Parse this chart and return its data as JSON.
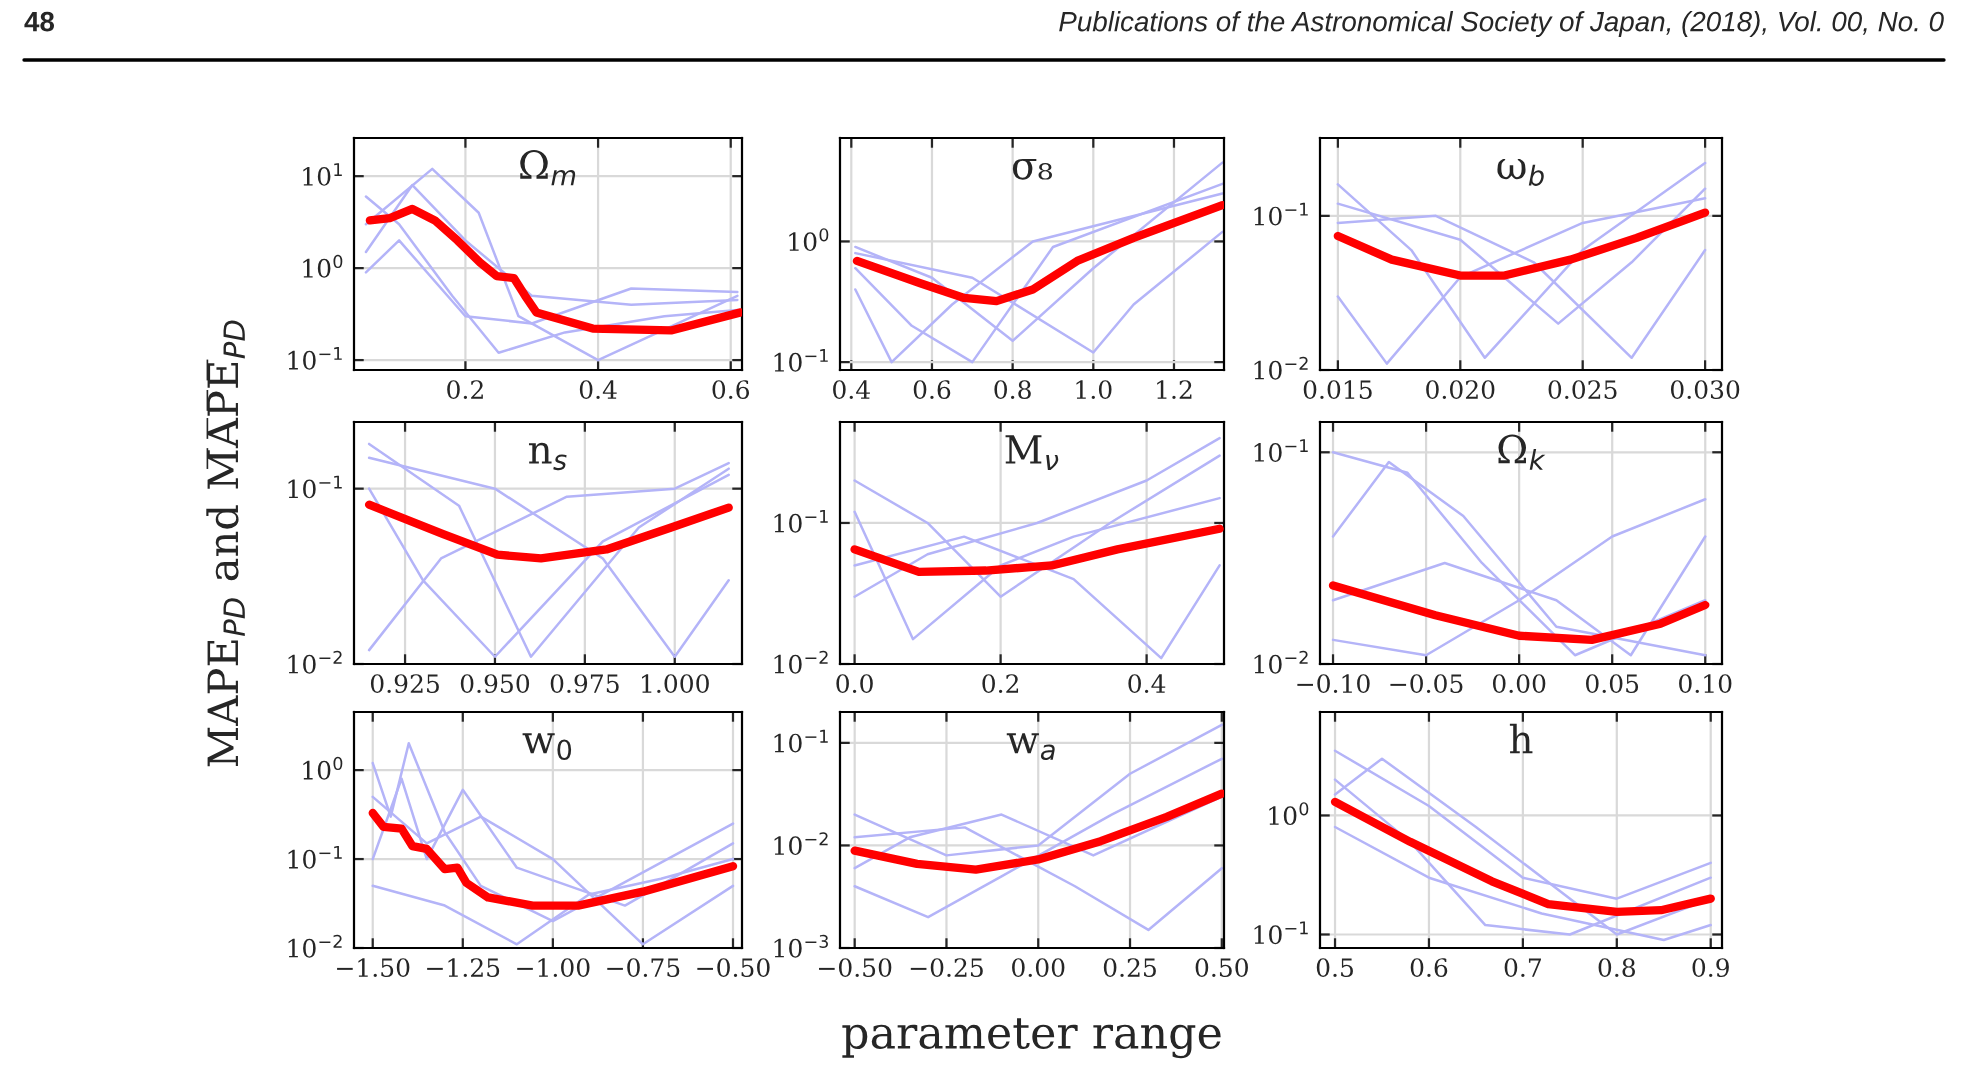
{
  "chart_data": [
    {
      "type": "line",
      "title": "Ω$_{m}$",
      "annotations": [
        "48",
        "Publications of the Astronomical Society of Japan, (2018), Vol. 00, No. 0"
      ],
      "grid": true,
      "log": "y",
      "marker": "none",
      "line_style": "solid",
      "xlim": [
        0.032,
        0.617
      ],
      "xticks": [
        0.2,
        0.4,
        0.6
      ],
      "ylim": [
        0.078,
        26
      ],
      "yticks": [
        {
          "value": 0.1,
          "label": "10$^{−1}$"
        },
        {
          "value": 1,
          "label": "10$^{0}$"
        },
        {
          "value": 10,
          "label": "10$^{1}$"
        }
      ],
      "series": [
        {
          "color": "#b4b4f8",
          "x": [
            0.05,
            0.12,
            0.2,
            0.3,
            0.45,
            0.61
          ],
          "values": [
            1.5,
            8,
            2,
            0.5,
            0.4,
            0.45
          ]
        },
        {
          "color": "#b4b4f8",
          "x": [
            0.05,
            0.1,
            0.18,
            0.25,
            0.35,
            0.5,
            0.61
          ],
          "values": [
            6,
            3,
            0.5,
            0.12,
            0.2,
            0.3,
            0.35
          ]
        },
        {
          "color": "#b4b4f8",
          "x": [
            0.05,
            0.15,
            0.22,
            0.28,
            0.4,
            0.61
          ],
          "values": [
            3,
            12,
            4,
            0.3,
            0.1,
            0.5
          ]
        },
        {
          "color": "#b4b4f8",
          "x": [
            0.05,
            0.1,
            0.2,
            0.3,
            0.45,
            0.61
          ],
          "values": [
            0.9,
            2,
            0.3,
            0.25,
            0.6,
            0.55
          ]
        },
        {
          "color": "#ff0000",
          "x": [
            0.056,
            0.086,
            0.12,
            0.154,
            0.188,
            0.222,
            0.247,
            0.273,
            0.29,
            0.307,
            0.392,
            0.51,
            0.615
          ],
          "values": [
            3.3,
            3.5,
            4.4,
            3.3,
            2.0,
            1.15,
            0.82,
            0.78,
            0.5,
            0.33,
            0.22,
            0.21,
            0.33
          ]
        }
      ]
    },
    {
      "type": "line",
      "title": "σ₈",
      "grid": true,
      "log": "y",
      "marker": "none",
      "line_style": "solid",
      "xlim": [
        0.372,
        1.324
      ],
      "xticks": [
        0.4,
        0.6,
        0.8,
        {
          "value": 1.0,
          "label": "1.0"
        },
        1.2
      ],
      "ylim": [
        0.086,
        7.2
      ],
      "yticks": [
        {
          "value": 0.1,
          "label": "10$^{−1}$"
        },
        {
          "value": 1,
          "label": "10$^{0}$"
        }
      ],
      "series": [
        {
          "color": "#b4b4f8",
          "x": [
            0.41,
            0.6,
            0.8,
            1.0,
            1.32
          ],
          "values": [
            0.9,
            0.5,
            0.15,
            0.6,
            4.5
          ]
        },
        {
          "color": "#b4b4f8",
          "x": [
            0.41,
            0.55,
            0.7,
            0.9,
            1.32
          ],
          "values": [
            0.6,
            0.2,
            0.1,
            0.9,
            3
          ]
        },
        {
          "color": "#b4b4f8",
          "x": [
            0.41,
            0.7,
            1.0,
            1.1,
            1.32
          ],
          "values": [
            0.8,
            0.5,
            0.12,
            0.3,
            1.2
          ]
        },
        {
          "color": "#b4b4f8",
          "x": [
            0.41,
            0.5,
            0.65,
            0.85,
            1.32
          ],
          "values": [
            0.4,
            0.1,
            0.3,
            1.0,
            2.5
          ]
        },
        {
          "color": "#ff0000",
          "x": [
            0.414,
            0.571,
            0.68,
            0.76,
            0.85,
            0.96,
            1.1,
            1.32
          ],
          "values": [
            0.69,
            0.45,
            0.34,
            0.32,
            0.4,
            0.69,
            1.07,
            2.0
          ]
        }
      ]
    },
    {
      "type": "line",
      "title": "ω$_{b}$",
      "grid": true,
      "log": "y",
      "marker": "none",
      "line_style": "solid",
      "xlim": [
        0.01427,
        0.03069
      ],
      "xticks": [
        0.015,
        {
          "value": 0.02,
          "label": "0.020"
        },
        0.025,
        {
          "value": 0.03,
          "label": "0.030"
        }
      ],
      "ylim": [
        0.01,
        0.32
      ],
      "yticks": [
        {
          "value": 0.01,
          "label": "10$^{−2}$"
        },
        {
          "value": 0.1,
          "label": "10$^{−1}$"
        }
      ],
      "series": [
        {
          "color": "#b4b4f8",
          "x": [
            0.015,
            0.018,
            0.021,
            0.025,
            0.03
          ],
          "values": [
            0.16,
            0.06,
            0.012,
            0.06,
            0.22
          ]
        },
        {
          "color": "#b4b4f8",
          "x": [
            0.015,
            0.02,
            0.024,
            0.027,
            0.03
          ],
          "values": [
            0.12,
            0.07,
            0.02,
            0.05,
            0.15
          ]
        },
        {
          "color": "#b4b4f8",
          "x": [
            0.015,
            0.017,
            0.02,
            0.025,
            0.03
          ],
          "values": [
            0.03,
            0.011,
            0.04,
            0.09,
            0.13
          ]
        },
        {
          "color": "#b4b4f8",
          "x": [
            0.015,
            0.019,
            0.023,
            0.027,
            0.03
          ],
          "values": [
            0.09,
            0.1,
            0.05,
            0.012,
            0.06
          ]
        },
        {
          "color": "#ff0000",
          "x": [
            0.015,
            0.0172,
            0.02,
            0.0218,
            0.0245,
            0.0272,
            0.03
          ],
          "values": [
            0.074,
            0.052,
            0.041,
            0.041,
            0.052,
            0.072,
            0.105
          ]
        }
      ]
    },
    {
      "type": "line",
      "title": "n$_{s}$",
      "ylabel": "MAPE$_{PD}$ and M̅A̅P̅E̅$_{PD}$",
      "grid": true,
      "log": "y",
      "marker": "none",
      "line_style": "solid",
      "xlim": [
        0.9108,
        1.0187
      ],
      "xticks": [
        0.925,
        {
          "value": 0.95,
          "label": "0.950"
        },
        0.975,
        {
          "value": 1.0,
          "label": "1.000"
        }
      ],
      "ylim": [
        0.01,
        0.24
      ],
      "yticks": [
        {
          "value": 0.01,
          "label": "10$^{−2}$"
        },
        {
          "value": 0.1,
          "label": "10$^{−1}$"
        }
      ],
      "series": [
        {
          "color": "#b4b4f8",
          "x": [
            0.915,
            0.94,
            0.96,
            0.99,
            1.015
          ],
          "values": [
            0.18,
            0.08,
            0.011,
            0.06,
            0.13
          ]
        },
        {
          "color": "#b4b4f8",
          "x": [
            0.915,
            0.93,
            0.95,
            0.98,
            1.015
          ],
          "values": [
            0.1,
            0.03,
            0.011,
            0.05,
            0.12
          ]
        },
        {
          "color": "#b4b4f8",
          "x": [
            0.915,
            0.95,
            0.98,
            1.0,
            1.015
          ],
          "values": [
            0.15,
            0.1,
            0.04,
            0.011,
            0.03
          ]
        },
        {
          "color": "#b4b4f8",
          "x": [
            0.915,
            0.935,
            0.97,
            1.0,
            1.015
          ],
          "values": [
            0.012,
            0.04,
            0.09,
            0.1,
            0.14
          ]
        },
        {
          "color": "#ff0000",
          "x": [
            0.915,
            0.9356,
            0.9507,
            0.9628,
            0.981,
            0.999,
            1.015
          ],
          "values": [
            0.081,
            0.055,
            0.042,
            0.04,
            0.045,
            0.06,
            0.078
          ]
        }
      ]
    },
    {
      "type": "line",
      "title": "M$_{ν}$",
      "grid": true,
      "log": "y",
      "marker": "none",
      "line_style": "solid",
      "xlim": [
        -0.02,
        0.506
      ],
      "xticks": [
        {
          "value": 0.0,
          "label": "0.0"
        },
        0.2,
        0.4
      ],
      "ylim": [
        0.01,
        0.52
      ],
      "yticks": [
        {
          "value": 0.01,
          "label": "10$^{−2}$"
        },
        {
          "value": 0.1,
          "label": "10$^{−1}$"
        }
      ],
      "series": [
        {
          "color": "#b4b4f8",
          "x": [
            0.0,
            0.1,
            0.2,
            0.35,
            0.5
          ],
          "values": [
            0.2,
            0.1,
            0.03,
            0.1,
            0.3
          ]
        },
        {
          "color": "#b4b4f8",
          "x": [
            0.0,
            0.08,
            0.2,
            0.3,
            0.5
          ],
          "values": [
            0.12,
            0.015,
            0.05,
            0.08,
            0.15
          ]
        },
        {
          "color": "#b4b4f8",
          "x": [
            0.0,
            0.15,
            0.3,
            0.42,
            0.5
          ],
          "values": [
            0.05,
            0.08,
            0.04,
            0.011,
            0.05
          ]
        },
        {
          "color": "#b4b4f8",
          "x": [
            0.0,
            0.1,
            0.25,
            0.4,
            0.5
          ],
          "values": [
            0.03,
            0.06,
            0.1,
            0.2,
            0.4
          ]
        },
        {
          "color": "#ff0000",
          "x": [
            0.0,
            0.088,
            0.18,
            0.27,
            0.36,
            0.5
          ],
          "values": [
            0.065,
            0.045,
            0.046,
            0.05,
            0.065,
            0.091
          ]
        }
      ]
    },
    {
      "type": "line",
      "title": "Ω$_{k}$",
      "grid": true,
      "log": "y",
      "marker": "none",
      "line_style": "solid",
      "xlim": [
        -0.107,
        0.109
      ],
      "xticks": [
        {
          "value": -0.1,
          "label": "−0.10"
        },
        {
          "value": -0.05,
          "label": "−0.05"
        },
        {
          "value": 0.0,
          "label": "0.00"
        },
        0.05,
        {
          "value": 0.1,
          "label": "0.10"
        }
      ],
      "ylim": [
        0.01,
        0.139
      ],
      "yticks": [
        {
          "value": 0.01,
          "label": "10$^{−2}$"
        },
        {
          "value": 0.1,
          "label": "10$^{−1}$"
        }
      ],
      "series": [
        {
          "color": "#b4b4f8",
          "x": [
            -0.1,
            -0.06,
            -0.02,
            0.03,
            0.1
          ],
          "values": [
            0.1,
            0.08,
            0.03,
            0.011,
            0.02
          ]
        },
        {
          "color": "#b4b4f8",
          "x": [
            -0.1,
            -0.05,
            0.0,
            0.05,
            0.1
          ],
          "values": [
            0.013,
            0.011,
            0.02,
            0.04,
            0.06
          ]
        },
        {
          "color": "#b4b4f8",
          "x": [
            -0.1,
            -0.07,
            -0.03,
            0.02,
            0.1
          ],
          "values": [
            0.04,
            0.09,
            0.05,
            0.015,
            0.011
          ]
        },
        {
          "color": "#b4b4f8",
          "x": [
            -0.1,
            -0.04,
            0.02,
            0.06,
            0.1
          ],
          "values": [
            0.02,
            0.03,
            0.02,
            0.011,
            0.04
          ]
        },
        {
          "color": "#ff0000",
          "x": [
            -0.1,
            -0.045,
            0.0,
            0.039,
            0.076,
            0.1
          ],
          "values": [
            0.0235,
            0.017,
            0.0136,
            0.013,
            0.0155,
            0.019
          ]
        }
      ]
    },
    {
      "type": "line",
      "title": "w$_{0}$",
      "grid": true,
      "log": "y",
      "marker": "none",
      "line_style": "solid",
      "xlim": [
        -1.552,
        -0.475
      ],
      "xticks": [
        {
          "value": -1.5,
          "label": "−1.50"
        },
        {
          "value": -1.25,
          "label": "−1.25"
        },
        {
          "value": -1.0,
          "label": "−1.00"
        },
        {
          "value": -0.75,
          "label": "−0.75"
        },
        {
          "value": -0.5,
          "label": "−0.50"
        }
      ],
      "ylim": [
        0.01,
        4.5
      ],
      "yticks": [
        {
          "value": 0.01,
          "label": "10$^{−2}$"
        },
        {
          "value": 0.1,
          "label": "10$^{−1}$"
        },
        {
          "value": 1,
          "label": "10$^{0}$"
        }
      ],
      "series": [
        {
          "color": "#b4b4f8",
          "x": [
            -1.5,
            -1.45,
            -1.4,
            -1.3,
            -1.2,
            -1.0,
            -0.5
          ],
          "values": [
            1.2,
            0.3,
            2.0,
            0.2,
            0.05,
            0.02,
            0.25
          ]
        },
        {
          "color": "#b4b4f8",
          "x": [
            -1.5,
            -1.42,
            -1.35,
            -1.25,
            -1.1,
            -0.8,
            -0.5
          ],
          "values": [
            0.1,
            0.8,
            0.1,
            0.6,
            0.08,
            0.03,
            0.15
          ]
        },
        {
          "color": "#b4b4f8",
          "x": [
            -1.5,
            -1.3,
            -1.1,
            -0.9,
            -0.7,
            -0.5
          ],
          "values": [
            0.05,
            0.03,
            0.011,
            0.04,
            0.06,
            0.1
          ]
        },
        {
          "color": "#b4b4f8",
          "x": [
            -1.5,
            -1.35,
            -1.2,
            -1.0,
            -0.75,
            -0.5
          ],
          "values": [
            0.5,
            0.15,
            0.3,
            0.1,
            0.011,
            0.05
          ]
        },
        {
          "color": "#ff0000",
          "x": [
            -1.5,
            -1.47,
            -1.42,
            -1.39,
            -1.35,
            -1.3,
            -1.265,
            -1.24,
            -1.18,
            -1.056,
            -0.93,
            -0.75,
            -0.5
          ],
          "values": [
            0.33,
            0.23,
            0.22,
            0.14,
            0.13,
            0.077,
            0.08,
            0.054,
            0.037,
            0.03,
            0.03,
            0.043,
            0.083
          ]
        }
      ]
    },
    {
      "type": "line",
      "title": "w$_{a}$",
      "xlabel": "parameter range",
      "grid": true,
      "log": "y",
      "marker": "none",
      "line_style": "solid",
      "xlim": [
        -0.54,
        0.506
      ],
      "xticks": [
        {
          "value": -0.5,
          "label": "−0.50"
        },
        {
          "value": -0.25,
          "label": "−0.25"
        },
        {
          "value": 0.0,
          "label": "0.00"
        },
        0.25,
        {
          "value": 0.5,
          "label": "0.50"
        }
      ],
      "ylim": [
        0.001,
        0.2
      ],
      "yticks": [
        {
          "value": 0.001,
          "label": "10$^{−3}$"
        },
        {
          "value": 0.01,
          "label": "10$^{−2}$"
        },
        {
          "value": 0.1,
          "label": "10$^{−1}$"
        }
      ],
      "series": [
        {
          "color": "#b4b4f8",
          "x": [
            -0.5,
            -0.25,
            0.0,
            0.25,
            0.5
          ],
          "values": [
            0.02,
            0.008,
            0.01,
            0.05,
            0.15
          ]
        },
        {
          "color": "#b4b4f8",
          "x": [
            -0.5,
            -0.3,
            -0.1,
            0.2,
            0.5
          ],
          "values": [
            0.004,
            0.002,
            0.005,
            0.02,
            0.07
          ]
        },
        {
          "color": "#b4b4f8",
          "x": [
            -0.5,
            -0.2,
            0.1,
            0.3,
            0.5
          ],
          "values": [
            0.012,
            0.015,
            0.004,
            0.0015,
            0.006
          ]
        },
        {
          "color": "#b4b4f8",
          "x": [
            -0.5,
            -0.35,
            -0.1,
            0.15,
            0.5
          ],
          "values": [
            0.006,
            0.012,
            0.02,
            0.008,
            0.03
          ]
        },
        {
          "color": "#ff0000",
          "x": [
            -0.5,
            -0.33,
            -0.17,
            0.0,
            0.17,
            0.35,
            0.5
          ],
          "values": [
            0.0089,
            0.0066,
            0.0058,
            0.0073,
            0.011,
            0.019,
            0.032
          ]
        }
      ]
    },
    {
      "type": "line",
      "title": "h",
      "grid": true,
      "log": "y",
      "marker": "none",
      "line_style": "solid",
      "xlim": [
        0.484,
        0.912
      ],
      "xticks": [
        0.5,
        0.6,
        0.7,
        0.8,
        0.9
      ],
      "ylim": [
        0.077,
        7.4
      ],
      "yticks": [
        {
          "value": 0.1,
          "label": "10$^{−1}$"
        },
        {
          "value": 1,
          "label": "10$^{0}$"
        }
      ],
      "series": [
        {
          "color": "#b4b4f8",
          "x": [
            0.5,
            0.6,
            0.7,
            0.8,
            0.9
          ],
          "values": [
            3.5,
            1.2,
            0.3,
            0.2,
            0.4
          ]
        },
        {
          "color": "#b4b4f8",
          "x": [
            0.5,
            0.58,
            0.66,
            0.75,
            0.9
          ],
          "values": [
            2.0,
            0.6,
            0.12,
            0.1,
            0.3
          ]
        },
        {
          "color": "#b4b4f8",
          "x": [
            0.5,
            0.6,
            0.72,
            0.85,
            0.9
          ],
          "values": [
            0.8,
            0.3,
            0.15,
            0.09,
            0.12
          ]
        },
        {
          "color": "#b4b4f8",
          "x": [
            0.5,
            0.55,
            0.65,
            0.8,
            0.9
          ],
          "values": [
            1.5,
            3.0,
            0.8,
            0.1,
            0.2
          ]
        },
        {
          "color": "#ff0000",
          "x": [
            0.5,
            0.58,
            0.667,
            0.727,
            0.8,
            0.847,
            0.9
          ],
          "values": [
            1.3,
            0.6,
            0.28,
            0.18,
            0.155,
            0.16,
            0.2
          ]
        }
      ]
    }
  ]
}
